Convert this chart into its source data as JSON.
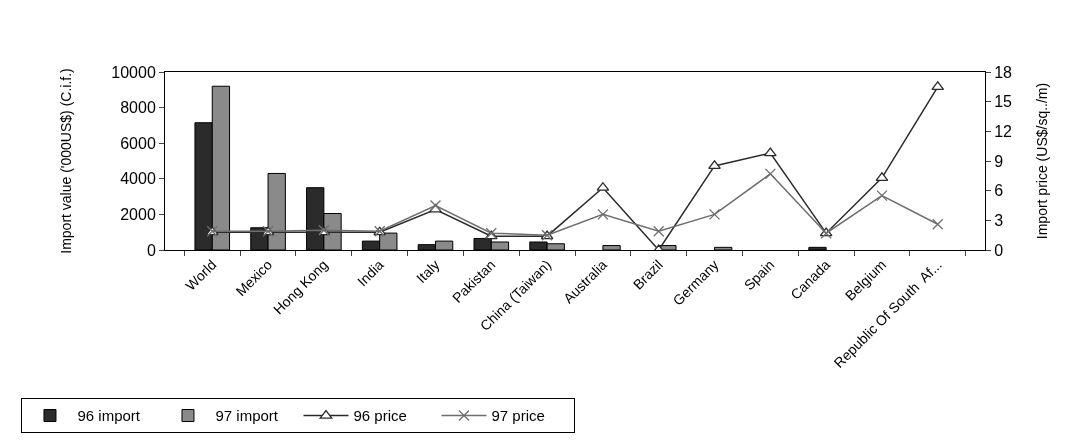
{
  "chart_data": {
    "type": "bar",
    "categories": [
      "World",
      "Mexico",
      "Hong Kong",
      "India",
      "Italy",
      "Pakistan",
      "China (Taiwan)",
      "Australia",
      "Brazil",
      "Germany",
      "Spain",
      "Canada",
      "Belgium",
      "Republic Of South  Af..."
    ],
    "ylabel": "Import value ('000US$) (C.i.f.)",
    "y2label": "Import price (US$/sq../m)",
    "ylim": [
      0,
      10000
    ],
    "yticks": [
      0,
      2000,
      4000,
      6000,
      8000,
      10000
    ],
    "y2lim": [
      0,
      18
    ],
    "y2ticks": [
      0,
      3,
      6,
      9,
      12,
      15,
      18
    ],
    "grid": false,
    "legend": "bottom left",
    "series": [
      {
        "name": "96 import",
        "color": "#2b2b2b",
        "values": [
          7150,
          1250,
          3500,
          500,
          300,
          650,
          450,
          null,
          null,
          null,
          null,
          150,
          null,
          null
        ]
      },
      {
        "name": "97 import",
        "color": "#8a8a8a",
        "values": [
          9200,
          4300,
          2050,
          950,
          500,
          450,
          350,
          250,
          250,
          150,
          null,
          null,
          null,
          null
        ]
      },
      {
        "name": "96 price",
        "type": "line",
        "axis": "y2",
        "marker": "triangle",
        "color": "#2b2b2b",
        "values": [
          1.8,
          1.8,
          1.8,
          1.8,
          4.1,
          1.4,
          1.4,
          6.3,
          0,
          8.5,
          9.8,
          1.7,
          7.3,
          16.5
        ]
      },
      {
        "name": "97 price",
        "type": "line",
        "axis": "y2",
        "marker": "cross",
        "color": "#6e6e6e",
        "values": [
          1.9,
          1.9,
          2.0,
          1.9,
          4.5,
          1.7,
          1.5,
          3.6,
          1.9,
          3.6,
          7.7,
          1.7,
          5.5,
          2.6
        ]
      }
    ]
  }
}
